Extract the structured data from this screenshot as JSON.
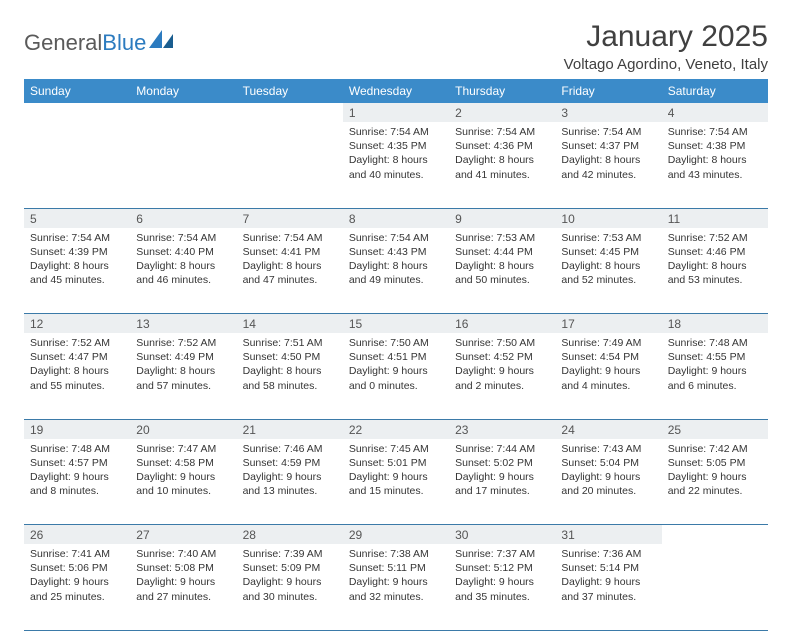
{
  "brand": {
    "part1": "General",
    "part2": "Blue"
  },
  "title": "January 2025",
  "location": "Voltago Agordino, Veneto, Italy",
  "colors": {
    "header_bg": "#3b8bc9",
    "header_text": "#ffffff",
    "daynum_bg": "#eceff1",
    "row_border": "#3b7aa8",
    "logo_blue": "#2c7bbf",
    "text": "#333333"
  },
  "daysOfWeek": [
    "Sunday",
    "Monday",
    "Tuesday",
    "Wednesday",
    "Thursday",
    "Friday",
    "Saturday"
  ],
  "weeks": [
    [
      null,
      null,
      null,
      {
        "n": "1",
        "sunrise": "7:54 AM",
        "sunset": "4:35 PM",
        "dl1": "Daylight: 8 hours",
        "dl2": "and 40 minutes."
      },
      {
        "n": "2",
        "sunrise": "7:54 AM",
        "sunset": "4:36 PM",
        "dl1": "Daylight: 8 hours",
        "dl2": "and 41 minutes."
      },
      {
        "n": "3",
        "sunrise": "7:54 AM",
        "sunset": "4:37 PM",
        "dl1": "Daylight: 8 hours",
        "dl2": "and 42 minutes."
      },
      {
        "n": "4",
        "sunrise": "7:54 AM",
        "sunset": "4:38 PM",
        "dl1": "Daylight: 8 hours",
        "dl2": "and 43 minutes."
      }
    ],
    [
      {
        "n": "5",
        "sunrise": "7:54 AM",
        "sunset": "4:39 PM",
        "dl1": "Daylight: 8 hours",
        "dl2": "and 45 minutes."
      },
      {
        "n": "6",
        "sunrise": "7:54 AM",
        "sunset": "4:40 PM",
        "dl1": "Daylight: 8 hours",
        "dl2": "and 46 minutes."
      },
      {
        "n": "7",
        "sunrise": "7:54 AM",
        "sunset": "4:41 PM",
        "dl1": "Daylight: 8 hours",
        "dl2": "and 47 minutes."
      },
      {
        "n": "8",
        "sunrise": "7:54 AM",
        "sunset": "4:43 PM",
        "dl1": "Daylight: 8 hours",
        "dl2": "and 49 minutes."
      },
      {
        "n": "9",
        "sunrise": "7:53 AM",
        "sunset": "4:44 PM",
        "dl1": "Daylight: 8 hours",
        "dl2": "and 50 minutes."
      },
      {
        "n": "10",
        "sunrise": "7:53 AM",
        "sunset": "4:45 PM",
        "dl1": "Daylight: 8 hours",
        "dl2": "and 52 minutes."
      },
      {
        "n": "11",
        "sunrise": "7:52 AM",
        "sunset": "4:46 PM",
        "dl1": "Daylight: 8 hours",
        "dl2": "and 53 minutes."
      }
    ],
    [
      {
        "n": "12",
        "sunrise": "7:52 AM",
        "sunset": "4:47 PM",
        "dl1": "Daylight: 8 hours",
        "dl2": "and 55 minutes."
      },
      {
        "n": "13",
        "sunrise": "7:52 AM",
        "sunset": "4:49 PM",
        "dl1": "Daylight: 8 hours",
        "dl2": "and 57 minutes."
      },
      {
        "n": "14",
        "sunrise": "7:51 AM",
        "sunset": "4:50 PM",
        "dl1": "Daylight: 8 hours",
        "dl2": "and 58 minutes."
      },
      {
        "n": "15",
        "sunrise": "7:50 AM",
        "sunset": "4:51 PM",
        "dl1": "Daylight: 9 hours",
        "dl2": "and 0 minutes."
      },
      {
        "n": "16",
        "sunrise": "7:50 AM",
        "sunset": "4:52 PM",
        "dl1": "Daylight: 9 hours",
        "dl2": "and 2 minutes."
      },
      {
        "n": "17",
        "sunrise": "7:49 AM",
        "sunset": "4:54 PM",
        "dl1": "Daylight: 9 hours",
        "dl2": "and 4 minutes."
      },
      {
        "n": "18",
        "sunrise": "7:48 AM",
        "sunset": "4:55 PM",
        "dl1": "Daylight: 9 hours",
        "dl2": "and 6 minutes."
      }
    ],
    [
      {
        "n": "19",
        "sunrise": "7:48 AM",
        "sunset": "4:57 PM",
        "dl1": "Daylight: 9 hours",
        "dl2": "and 8 minutes."
      },
      {
        "n": "20",
        "sunrise": "7:47 AM",
        "sunset": "4:58 PM",
        "dl1": "Daylight: 9 hours",
        "dl2": "and 10 minutes."
      },
      {
        "n": "21",
        "sunrise": "7:46 AM",
        "sunset": "4:59 PM",
        "dl1": "Daylight: 9 hours",
        "dl2": "and 13 minutes."
      },
      {
        "n": "22",
        "sunrise": "7:45 AM",
        "sunset": "5:01 PM",
        "dl1": "Daylight: 9 hours",
        "dl2": "and 15 minutes."
      },
      {
        "n": "23",
        "sunrise": "7:44 AM",
        "sunset": "5:02 PM",
        "dl1": "Daylight: 9 hours",
        "dl2": "and 17 minutes."
      },
      {
        "n": "24",
        "sunrise": "7:43 AM",
        "sunset": "5:04 PM",
        "dl1": "Daylight: 9 hours",
        "dl2": "and 20 minutes."
      },
      {
        "n": "25",
        "sunrise": "7:42 AM",
        "sunset": "5:05 PM",
        "dl1": "Daylight: 9 hours",
        "dl2": "and 22 minutes."
      }
    ],
    [
      {
        "n": "26",
        "sunrise": "7:41 AM",
        "sunset": "5:06 PM",
        "dl1": "Daylight: 9 hours",
        "dl2": "and 25 minutes."
      },
      {
        "n": "27",
        "sunrise": "7:40 AM",
        "sunset": "5:08 PM",
        "dl1": "Daylight: 9 hours",
        "dl2": "and 27 minutes."
      },
      {
        "n": "28",
        "sunrise": "7:39 AM",
        "sunset": "5:09 PM",
        "dl1": "Daylight: 9 hours",
        "dl2": "and 30 minutes."
      },
      {
        "n": "29",
        "sunrise": "7:38 AM",
        "sunset": "5:11 PM",
        "dl1": "Daylight: 9 hours",
        "dl2": "and 32 minutes."
      },
      {
        "n": "30",
        "sunrise": "7:37 AM",
        "sunset": "5:12 PM",
        "dl1": "Daylight: 9 hours",
        "dl2": "and 35 minutes."
      },
      {
        "n": "31",
        "sunrise": "7:36 AM",
        "sunset": "5:14 PM",
        "dl1": "Daylight: 9 hours",
        "dl2": "and 37 minutes."
      },
      null
    ]
  ]
}
